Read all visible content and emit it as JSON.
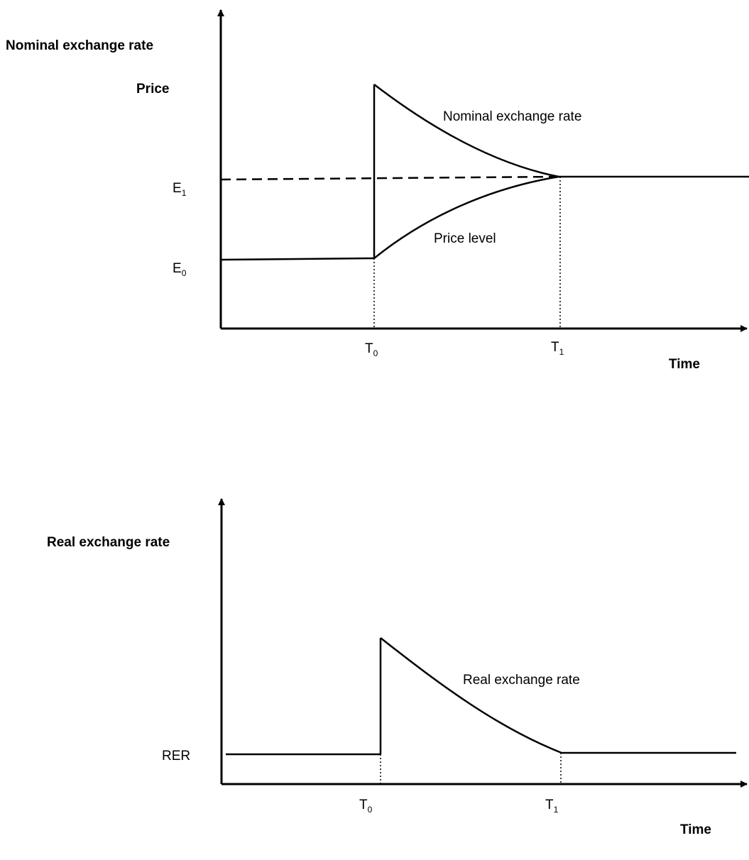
{
  "top_panel": {
    "y_axis_title": "Nominal exchange rate",
    "y_axis_subtitle": "Price",
    "x_axis_title": "Time",
    "level_labels": {
      "e1": {
        "main": "E",
        "sub": "1"
      },
      "e0": {
        "main": "E",
        "sub": "0"
      }
    },
    "time_marks": {
      "t0": {
        "main": "T",
        "sub": "0"
      },
      "t1": {
        "main": "T",
        "sub": "1"
      }
    },
    "curve_labels": {
      "nominal": "Nominal exchange rate",
      "price": "Price level"
    }
  },
  "bottom_panel": {
    "y_axis_title": "Real exchange rate",
    "x_axis_title": "Time",
    "level_label": "RER",
    "time_marks": {
      "t0": {
        "main": "T",
        "sub": "0"
      },
      "t1": {
        "main": "T",
        "sub": "1"
      }
    },
    "curve_label": "Real exchange rate"
  }
}
